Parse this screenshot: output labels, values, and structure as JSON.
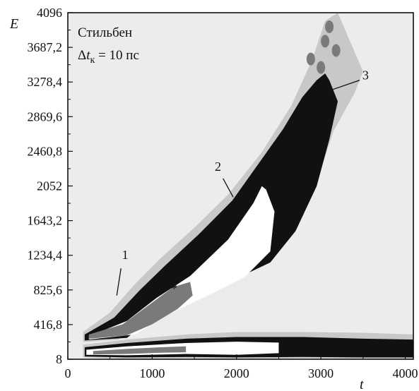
{
  "chart_data": {
    "type": "heatmap",
    "title": "Стильбен",
    "subtitle_parts": {
      "delta": "Δ",
      "t": "t",
      "sub": "к",
      "rest": " = 10 пс"
    },
    "xlabel": "t",
    "ylabel": "E",
    "xlim": [
      0,
      4096
    ],
    "ylim": [
      8,
      4096
    ],
    "xticks": [
      0,
      1000,
      2000,
      3000,
      4000
    ],
    "xtick_labels": [
      "0",
      "1000",
      "2000",
      "3000",
      "4000"
    ],
    "yticks": [
      8,
      416.8,
      825.6,
      1234.4,
      1643.2,
      2052,
      2460.8,
      2869.6,
      3278.4,
      3687.2,
      4096
    ],
    "ytick_labels": [
      "8",
      "416,8",
      "825,6",
      "1234,4",
      "1643,2",
      "2052",
      "2460,8",
      "2869,6",
      "3278,4",
      "3687,2",
      "4096"
    ],
    "colors": {
      "background": "#ececec",
      "light_gray": "#c8c8c8",
      "mid_gray": "#7a7a7a",
      "black": "#111111",
      "white": "#ffffff"
    },
    "annotations": [
      {
        "label": "1",
        "text_x": 680,
        "text_y": 1190,
        "line_from": [
          630,
          1080
        ],
        "line_to": [
          580,
          760
        ]
      },
      {
        "label": "2",
        "text_x": 1780,
        "text_y": 2230,
        "line_from": [
          1840,
          2140
        ],
        "line_to": [
          1960,
          1920
        ]
      },
      {
        "label": "3",
        "text_x": 3530,
        "text_y": 3310,
        "line_from": [
          3460,
          3300
        ],
        "line_to": [
          3140,
          3190
        ]
      },
      {
        "label": "*",
        "text_x": 1260,
        "text_y": 790
      }
    ]
  }
}
